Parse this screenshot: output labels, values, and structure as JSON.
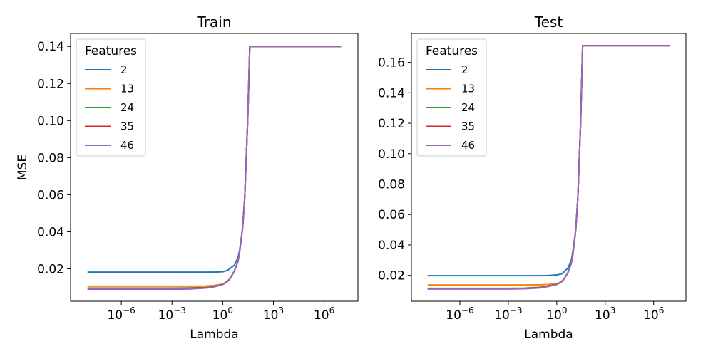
{
  "chart_data": [
    {
      "type": "line",
      "title": "Train",
      "xlabel": "Lambda",
      "ylabel": "MSE",
      "xscale": "log",
      "xlim": [
        1e-09,
        100000000.0
      ],
      "ylim": [
        0.0025,
        0.147
      ],
      "xticks": [
        1e-06,
        0.001,
        1,
        1000.0,
        1000000.0
      ],
      "xtick_labels": [
        {
          "base": "10",
          "exp": "−6"
        },
        {
          "base": "10",
          "exp": "−3"
        },
        {
          "base": "10",
          "exp": "0"
        },
        {
          "base": "10",
          "exp": "3"
        },
        {
          "base": "10",
          "exp": "6"
        }
      ],
      "yticks": [
        0.02,
        0.04,
        0.06,
        0.08,
        0.1,
        0.12,
        0.14
      ],
      "ytick_labels": [
        "0.02",
        "0.04",
        "0.06",
        "0.08",
        "0.10",
        "0.12",
        "0.14"
      ],
      "grid": false,
      "legend": {
        "title": "Features",
        "position": "top-left"
      },
      "x": [
        1e-08,
        1e-06,
        0.001,
        0.01,
        0.1,
        0.3,
        1,
        2,
        3,
        5,
        8,
        10,
        15,
        20,
        30,
        40,
        50,
        1000.0,
        1000000.0,
        10000000.0
      ],
      "series": [
        {
          "name": "2",
          "color": "#1f77b4",
          "values": [
            0.0182,
            0.0182,
            0.0182,
            0.0182,
            0.0182,
            0.0182,
            0.0184,
            0.0192,
            0.0205,
            0.022,
            0.026,
            0.03,
            0.042,
            0.058,
            0.1,
            0.14,
            0.14,
            0.14,
            0.14,
            0.14
          ]
        },
        {
          "name": "13",
          "color": "#ff7f0e",
          "values": [
            0.0106,
            0.0106,
            0.0106,
            0.0106,
            0.0107,
            0.011,
            0.0118,
            0.0135,
            0.0155,
            0.019,
            0.024,
            0.029,
            0.042,
            0.058,
            0.1,
            0.14,
            0.14,
            0.14,
            0.14,
            0.14
          ]
        },
        {
          "name": "24",
          "color": "#2ca02c",
          "values": [
            0.0096,
            0.0096,
            0.0096,
            0.0097,
            0.0099,
            0.0104,
            0.0116,
            0.0133,
            0.0153,
            0.019,
            0.024,
            0.029,
            0.042,
            0.058,
            0.1,
            0.14,
            0.14,
            0.14,
            0.14,
            0.14
          ]
        },
        {
          "name": "35",
          "color": "#d62728",
          "values": [
            0.0095,
            0.0095,
            0.0095,
            0.0095,
            0.0098,
            0.0103,
            0.0115,
            0.0133,
            0.0153,
            0.019,
            0.024,
            0.029,
            0.042,
            0.058,
            0.1,
            0.14,
            0.14,
            0.14,
            0.14,
            0.14
          ]
        },
        {
          "name": "46",
          "color": "#9467bd",
          "values": [
            0.009,
            0.009,
            0.009,
            0.0091,
            0.0096,
            0.0102,
            0.0115,
            0.0133,
            0.0153,
            0.019,
            0.024,
            0.029,
            0.042,
            0.058,
            0.1,
            0.14,
            0.14,
            0.14,
            0.14,
            0.14
          ]
        }
      ]
    },
    {
      "type": "line",
      "title": "Test",
      "xlabel": "Lambda",
      "ylabel": "",
      "xscale": "log",
      "xlim": [
        1e-09,
        100000000.0
      ],
      "ylim": [
        0.003,
        0.179
      ],
      "xticks": [
        1e-06,
        0.001,
        1,
        1000.0,
        1000000.0
      ],
      "xtick_labels": [
        {
          "base": "10",
          "exp": "−6"
        },
        {
          "base": "10",
          "exp": "−3"
        },
        {
          "base": "10",
          "exp": "0"
        },
        {
          "base": "10",
          "exp": "3"
        },
        {
          "base": "10",
          "exp": "6"
        }
      ],
      "yticks": [
        0.02,
        0.04,
        0.06,
        0.08,
        0.1,
        0.12,
        0.14,
        0.16
      ],
      "ytick_labels": [
        "0.02",
        "0.04",
        "0.06",
        "0.08",
        "0.10",
        "0.12",
        "0.14",
        "0.16"
      ],
      "grid": false,
      "legend": {
        "title": "Features",
        "position": "top-left"
      },
      "x": [
        1e-08,
        1e-06,
        0.001,
        0.01,
        0.1,
        0.3,
        1,
        2,
        3,
        5,
        8,
        10,
        15,
        20,
        30,
        40,
        50,
        1000.0,
        1000000.0,
        10000000.0
      ],
      "series": [
        {
          "name": "2",
          "color": "#1f77b4",
          "values": [
            0.0198,
            0.0198,
            0.0198,
            0.0198,
            0.0198,
            0.0199,
            0.0203,
            0.021,
            0.0225,
            0.025,
            0.03,
            0.036,
            0.05,
            0.07,
            0.12,
            0.171,
            0.171,
            0.171,
            0.171,
            0.171
          ]
        },
        {
          "name": "13",
          "color": "#ff7f0e",
          "values": [
            0.0137,
            0.0137,
            0.0137,
            0.0137,
            0.0138,
            0.014,
            0.0145,
            0.0158,
            0.018,
            0.022,
            0.028,
            0.034,
            0.05,
            0.07,
            0.12,
            0.171,
            0.171,
            0.171,
            0.171,
            0.171
          ]
        },
        {
          "name": "24",
          "color": "#2ca02c",
          "values": [
            0.0115,
            0.0115,
            0.0115,
            0.0116,
            0.0122,
            0.013,
            0.0142,
            0.0158,
            0.018,
            0.022,
            0.028,
            0.034,
            0.05,
            0.07,
            0.12,
            0.171,
            0.171,
            0.171,
            0.171,
            0.171
          ]
        },
        {
          "name": "35",
          "color": "#d62728",
          "values": [
            0.0113,
            0.0113,
            0.0113,
            0.0114,
            0.012,
            0.0128,
            0.0141,
            0.0158,
            0.018,
            0.022,
            0.028,
            0.034,
            0.05,
            0.07,
            0.12,
            0.171,
            0.171,
            0.171,
            0.171,
            0.171
          ]
        },
        {
          "name": "46",
          "color": "#9467bd",
          "values": [
            0.011,
            0.011,
            0.011,
            0.0112,
            0.0118,
            0.0127,
            0.014,
            0.0158,
            0.018,
            0.022,
            0.028,
            0.034,
            0.05,
            0.07,
            0.12,
            0.171,
            0.171,
            0.171,
            0.171,
            0.171
          ]
        }
      ]
    }
  ]
}
